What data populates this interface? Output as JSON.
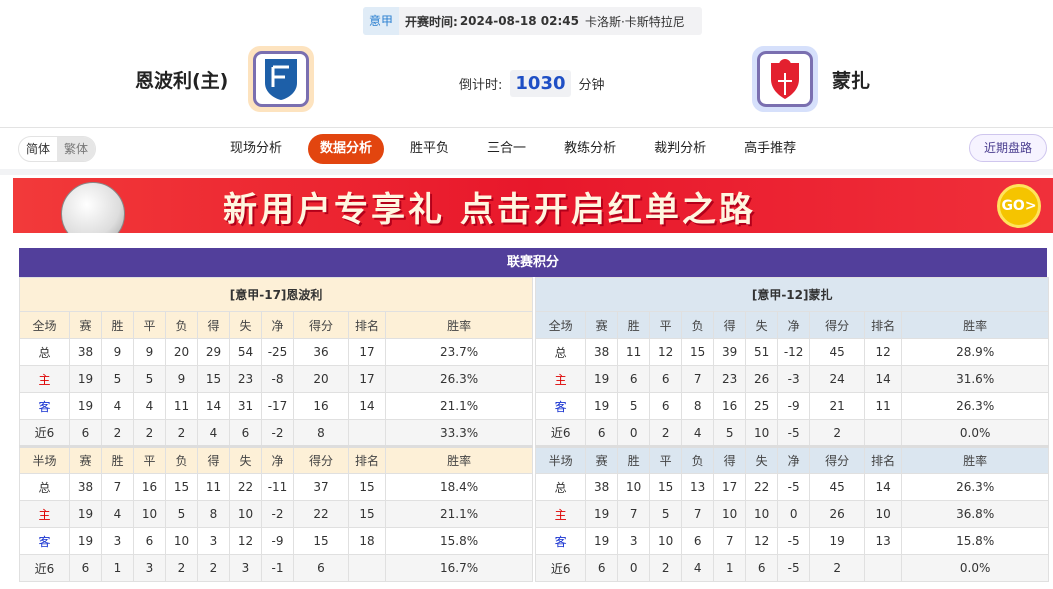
{
  "match": {
    "league": "意甲",
    "time_label": "开赛时间:",
    "time": "2024-08-18 02:45",
    "venue": "卡洛斯·卡斯特拉尼"
  },
  "home": {
    "name": "恩波利(主)",
    "logo": "empoli-crest"
  },
  "away": {
    "name": "蒙扎",
    "logo": "monza-crest"
  },
  "countdown": {
    "label": "倒计时:",
    "value": "1030",
    "unit": "分钟"
  },
  "lang": {
    "simplified": "简体",
    "traditional": "繁体"
  },
  "tabs": [
    "现场分析",
    "数据分析",
    "胜平负",
    "三合一",
    "教练分析",
    "裁判分析",
    "高手推荐"
  ],
  "active_tab": "数据分析",
  "recent_button": "近期盘路",
  "banner": {
    "text": "新用户专享礼  点击开启红单之路",
    "coin": "GO>"
  },
  "colors": {
    "accent": "#e2450f",
    "title_bar": "#523f9b",
    "home_header": "#fdf0d7",
    "away_header": "#dbe6f0"
  },
  "standings": {
    "title": "联赛积分",
    "cols": [
      "赛",
      "胜",
      "平",
      "负",
      "得",
      "失",
      "净",
      "得分",
      "排名",
      "胜率"
    ],
    "tables": [
      {
        "team": "[意甲-17]恩波利",
        "side": "L",
        "sections": [
          {
            "label": "全场",
            "rows": [
              [
                "总",
                "38",
                "9",
                "9",
                "20",
                "29",
                "54",
                "-25",
                "36",
                "17",
                "23.7%"
              ],
              [
                "主",
                "19",
                "5",
                "5",
                "9",
                "15",
                "23",
                "-8",
                "20",
                "17",
                "26.3%"
              ],
              [
                "客",
                "19",
                "4",
                "4",
                "11",
                "14",
                "31",
                "-17",
                "16",
                "14",
                "21.1%"
              ],
              [
                "近6",
                "6",
                "2",
                "2",
                "2",
                "4",
                "6",
                "-2",
                "8",
                "",
                "33.3%"
              ]
            ]
          },
          {
            "label": "半场",
            "rows": [
              [
                "总",
                "38",
                "7",
                "16",
                "15",
                "11",
                "22",
                "-11",
                "37",
                "15",
                "18.4%"
              ],
              [
                "主",
                "19",
                "4",
                "10",
                "5",
                "8",
                "10",
                "-2",
                "22",
                "15",
                "21.1%"
              ],
              [
                "客",
                "19",
                "3",
                "6",
                "10",
                "3",
                "12",
                "-9",
                "15",
                "18",
                "15.8%"
              ],
              [
                "近6",
                "6",
                "1",
                "3",
                "2",
                "2",
                "3",
                "-1",
                "6",
                "",
                "16.7%"
              ]
            ]
          }
        ]
      },
      {
        "team": "[意甲-12]蒙扎",
        "side": "R",
        "sections": [
          {
            "label": "全场",
            "rows": [
              [
                "总",
                "38",
                "11",
                "12",
                "15",
                "39",
                "51",
                "-12",
                "45",
                "12",
                "28.9%"
              ],
              [
                "主",
                "19",
                "6",
                "6",
                "7",
                "23",
                "26",
                "-3",
                "24",
                "14",
                "31.6%"
              ],
              [
                "客",
                "19",
                "5",
                "6",
                "8",
                "16",
                "25",
                "-9",
                "21",
                "11",
                "26.3%"
              ],
              [
                "近6",
                "6",
                "0",
                "2",
                "4",
                "5",
                "10",
                "-5",
                "2",
                "",
                "0.0%"
              ]
            ]
          },
          {
            "label": "半场",
            "rows": [
              [
                "总",
                "38",
                "10",
                "15",
                "13",
                "17",
                "22",
                "-5",
                "45",
                "14",
                "26.3%"
              ],
              [
                "主",
                "19",
                "7",
                "5",
                "7",
                "10",
                "10",
                "0",
                "26",
                "10",
                "36.8%"
              ],
              [
                "客",
                "19",
                "3",
                "10",
                "6",
                "7",
                "12",
                "-5",
                "19",
                "13",
                "15.8%"
              ],
              [
                "近6",
                "6",
                "0",
                "2",
                "4",
                "1",
                "6",
                "-5",
                "2",
                "",
                "0.0%"
              ]
            ]
          }
        ]
      }
    ]
  }
}
